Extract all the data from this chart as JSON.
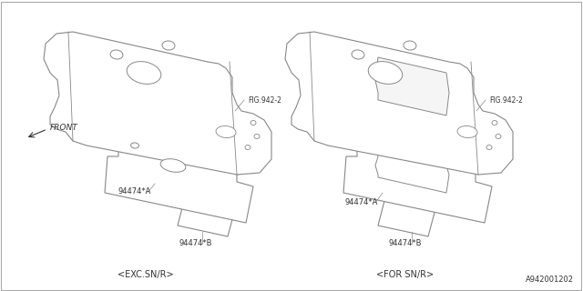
{
  "bg_color": "#ffffff",
  "line_color": "#888888",
  "text_color": "#333333",
  "title_bottom_right": "A942001202",
  "label_front": "FRONT",
  "label_bottom_left": "<EXC.SN/R>",
  "label_bottom_right": "<FOR SN/R>",
  "label_fig_left": "FIG.942-2",
  "label_fig_right": "FIG.942-2",
  "part_a_left": "94474*A",
  "part_b_left": "94474*B",
  "part_a_right": "94474*A",
  "part_b_right": "94474*B",
  "fig_width": 6.4,
  "fig_height": 3.2,
  "dpi": 100
}
